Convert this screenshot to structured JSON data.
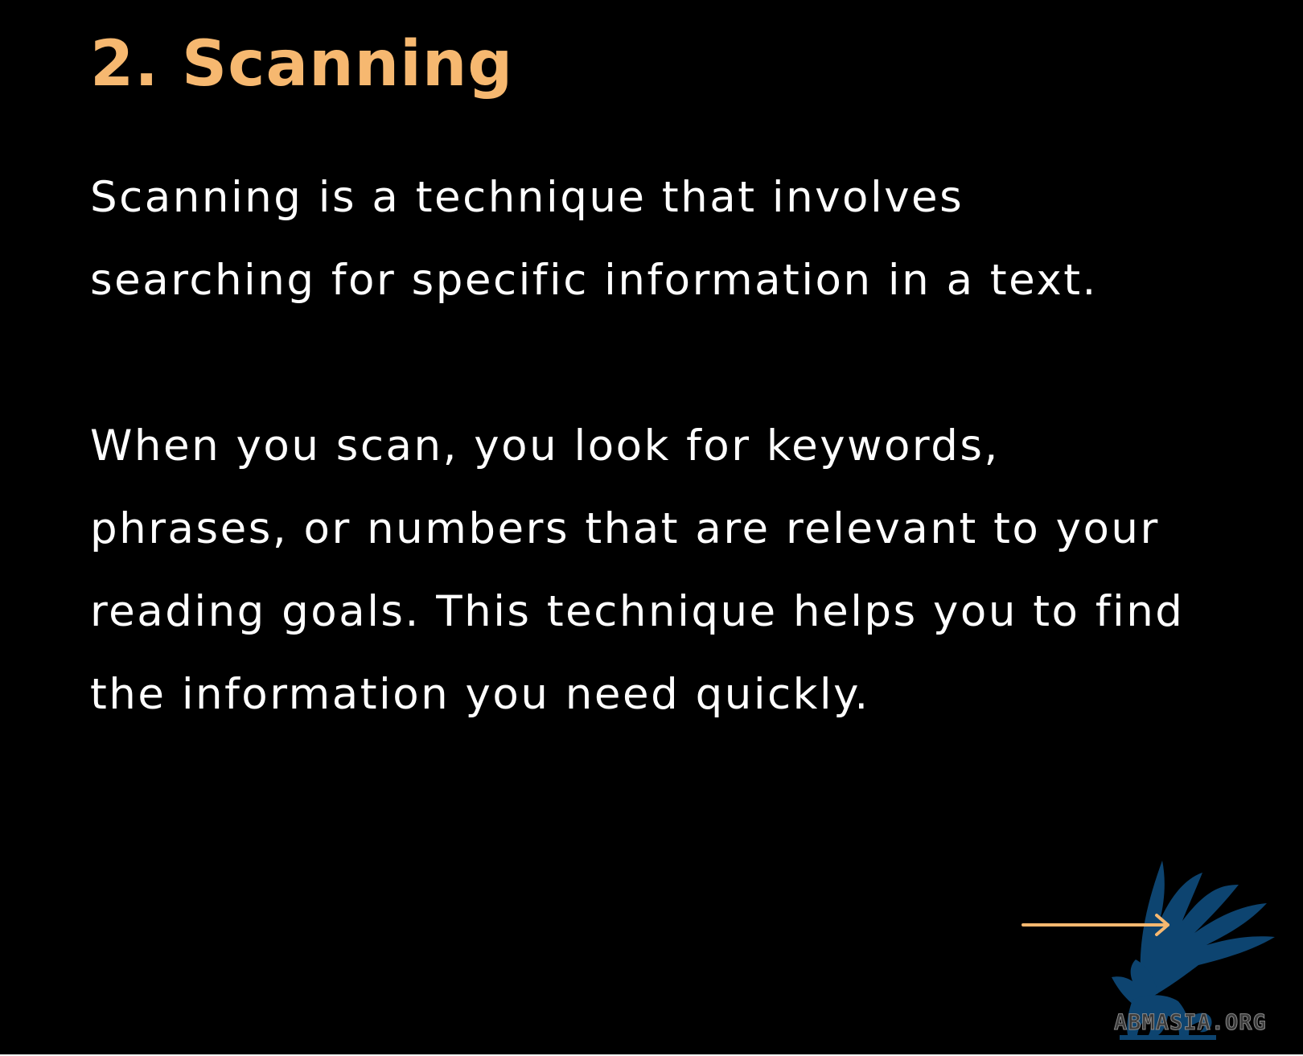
{
  "slide": {
    "title": "2. Scanning",
    "paragraph_1": [
      "Scanning is a technique that involves",
      "searching for specific information in a text."
    ],
    "paragraph_2": [
      "When you scan, you look for keywords,",
      "phrases, or numbers that are relevant to your",
      "reading goals. This technique helps you to find",
      "the information you need quickly."
    ]
  },
  "navigation": {
    "next_icon": "arrow-right-icon"
  },
  "watermark": {
    "icon": "griffin-icon",
    "text": "ABMASIA.ORG"
  },
  "colors": {
    "background": "#000000",
    "title": "#f6b870",
    "body_text": "#ffffff",
    "arrow": "#f6b870",
    "logo": "#0d4470"
  }
}
